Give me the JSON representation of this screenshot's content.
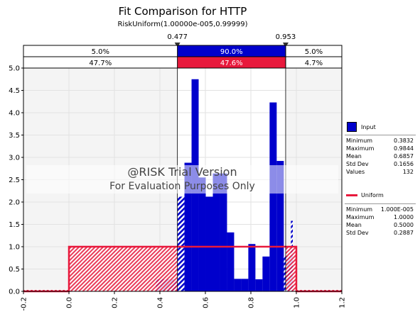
{
  "chart_data": {
    "type": "bar",
    "title": "Fit Comparison for HTTP",
    "subtitle": "RiskUniform(1.00000e-005,0.99999)",
    "xlim": [
      -0.2,
      1.2
    ],
    "ylim": [
      0,
      5
    ],
    "x_ticks": [
      "-0.2",
      "0.0",
      "0.2",
      "0.4",
      "0.6",
      "0.8",
      "1.0",
      "1.2"
    ],
    "y_ticks": [
      "0.0",
      "0.5",
      "1.0",
      "1.5",
      "2.0",
      "2.5",
      "3.0",
      "3.5",
      "4.0",
      "4.5",
      "5.0"
    ],
    "markers": [
      {
        "label": "0.477",
        "value": 0.477
      },
      {
        "label": "0.953",
        "value": 0.953
      }
    ],
    "delimiter_rows": [
      {
        "series": "Input",
        "left": "5.0%",
        "middle": "90.0%",
        "right": "5.0%",
        "middle_color": "#0000cc"
      },
      {
        "series": "Uniform",
        "left": "47.7%",
        "middle": "47.6%",
        "right": "4.7%",
        "middle_color": "#e8193c"
      }
    ],
    "histogram": {
      "name": "Input",
      "color": "#0000cc",
      "bin_edges": [
        0.3832,
        0.4144,
        0.4456,
        0.4768,
        0.508,
        0.5392,
        0.5704,
        0.6016,
        0.6328,
        0.664,
        0.6952,
        0.7264,
        0.7576,
        0.7888,
        0.82,
        0.8512,
        0.8824,
        0.9136,
        0.9448,
        0.976,
        0.9844
      ],
      "density": [
        0.27,
        0.27,
        0.27,
        2.12,
        2.88,
        4.75,
        2.55,
        2.12,
        2.64,
        2.64,
        1.32,
        0.28,
        0.28,
        1.06,
        0.27,
        0.78,
        4.23,
        2.92,
        0.79,
        1.58
      ]
    },
    "uniform_fit": {
      "name": "Uniform",
      "color": "#e8193c",
      "min": 1e-05,
      "max": 0.99999,
      "density": 1.0
    },
    "legend": [
      {
        "name": "Input",
        "color": "#0000cc",
        "stats": [
          {
            "label": "Minimum",
            "value": "0.3832"
          },
          {
            "label": "Maximum",
            "value": "0.9844"
          },
          {
            "label": "Mean",
            "value": "0.6857"
          },
          {
            "label": "Std Dev",
            "value": "0.1656"
          },
          {
            "label": "Values",
            "value": "132"
          }
        ]
      },
      {
        "name": "Uniform",
        "color": "#e8193c",
        "stats": [
          {
            "label": "Minimum",
            "value": "1.000E-005"
          },
          {
            "label": "Maximum",
            "value": "1.0000"
          },
          {
            "label": "Mean",
            "value": "0.5000"
          },
          {
            "label": "Std Dev",
            "value": "0.2887"
          }
        ]
      }
    ],
    "watermark": {
      "line1": "@RISK Trial Version",
      "line2": "For Evaluation Purposes Only"
    }
  }
}
